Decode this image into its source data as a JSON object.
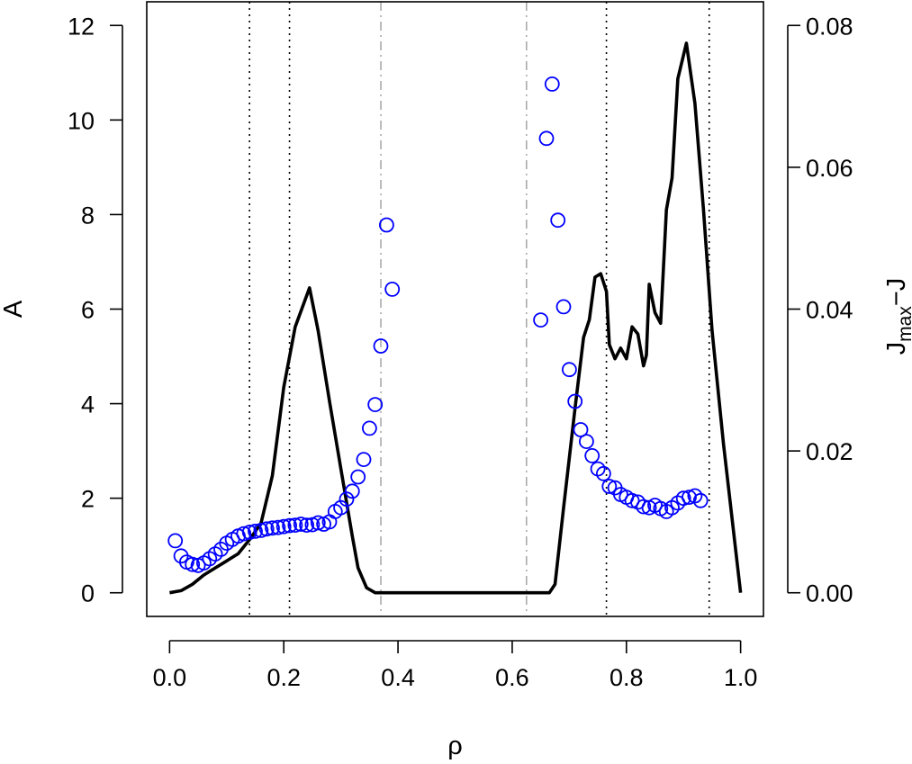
{
  "chart_data": {
    "type": "scatter",
    "x": {
      "label": "ρ",
      "lim": [
        -0.04,
        1.04
      ],
      "ticks": [
        0.0,
        0.2,
        0.4,
        0.6,
        0.8,
        1.0
      ],
      "tick_labels": [
        "0.0",
        "0.2",
        "0.4",
        "0.6",
        "0.8",
        "1.0"
      ]
    },
    "y_left": {
      "label": "A",
      "lim": [
        -0.5,
        12.5
      ],
      "ticks": [
        0,
        2,
        4,
        6,
        8,
        10,
        12
      ],
      "tick_labels": [
        "0",
        "2",
        "4",
        "6",
        "8",
        "10",
        "12"
      ]
    },
    "y_right": {
      "label_main": "J",
      "label_sub": "max",
      "label_rest": "−J",
      "ylim_note": "same pixel span as left axis",
      "ticks": [
        0.0,
        0.02,
        0.04,
        0.06,
        0.08
      ],
      "tick_labels": [
        "0.00",
        "0.02",
        "0.04",
        "0.06",
        "0.08"
      ]
    },
    "vlines_dotted": [
      0.14,
      0.21,
      0.765,
      0.945
    ],
    "vlines_dashdot": [
      0.37,
      0.625
    ],
    "grid": false,
    "series": [
      {
        "kind": "points",
        "axis": "left",
        "color": "#0000ff",
        "marker": "open-circle",
        "points": [
          [
            0.01,
            1.1
          ],
          [
            0.02,
            0.78
          ],
          [
            0.03,
            0.65
          ],
          [
            0.04,
            0.6
          ],
          [
            0.05,
            0.58
          ],
          [
            0.06,
            0.63
          ],
          [
            0.07,
            0.72
          ],
          [
            0.08,
            0.82
          ],
          [
            0.09,
            0.92
          ],
          [
            0.1,
            1.05
          ],
          [
            0.11,
            1.13
          ],
          [
            0.12,
            1.2
          ],
          [
            0.13,
            1.25
          ],
          [
            0.14,
            1.28
          ],
          [
            0.15,
            1.3
          ],
          [
            0.16,
            1.32
          ],
          [
            0.17,
            1.35
          ],
          [
            0.18,
            1.37
          ],
          [
            0.19,
            1.38
          ],
          [
            0.2,
            1.4
          ],
          [
            0.21,
            1.42
          ],
          [
            0.22,
            1.43
          ],
          [
            0.23,
            1.45
          ],
          [
            0.24,
            1.43
          ],
          [
            0.25,
            1.44
          ],
          [
            0.26,
            1.48
          ],
          [
            0.27,
            1.45
          ],
          [
            0.28,
            1.5
          ],
          [
            0.29,
            1.72
          ],
          [
            0.3,
            1.8
          ],
          [
            0.31,
            1.98
          ],
          [
            0.32,
            2.15
          ],
          [
            0.33,
            2.45
          ],
          [
            0.34,
            2.82
          ],
          [
            0.35,
            3.48
          ],
          [
            0.36,
            3.98
          ],
          [
            0.37,
            5.22
          ],
          [
            0.38,
            7.78
          ],
          [
            0.39,
            6.42
          ],
          [
            0.65,
            5.77
          ],
          [
            0.66,
            9.61
          ],
          [
            0.67,
            10.76
          ],
          [
            0.68,
            7.88
          ],
          [
            0.69,
            6.05
          ],
          [
            0.7,
            4.72
          ],
          [
            0.71,
            4.05
          ],
          [
            0.72,
            3.45
          ],
          [
            0.73,
            3.2
          ],
          [
            0.74,
            2.9
          ],
          [
            0.75,
            2.62
          ],
          [
            0.76,
            2.52
          ],
          [
            0.77,
            2.25
          ],
          [
            0.78,
            2.22
          ],
          [
            0.79,
            2.08
          ],
          [
            0.8,
            2.02
          ],
          [
            0.81,
            1.95
          ],
          [
            0.82,
            1.92
          ],
          [
            0.83,
            1.82
          ],
          [
            0.84,
            1.8
          ],
          [
            0.85,
            1.85
          ],
          [
            0.86,
            1.78
          ],
          [
            0.87,
            1.72
          ],
          [
            0.88,
            1.8
          ],
          [
            0.89,
            1.9
          ],
          [
            0.9,
            2.0
          ],
          [
            0.91,
            2.02
          ],
          [
            0.92,
            2.05
          ],
          [
            0.93,
            1.95
          ]
        ]
      },
      {
        "kind": "line",
        "axis": "right",
        "color": "#000000",
        "points": [
          [
            0.0,
            0.0
          ],
          [
            0.02,
            0.0003
          ],
          [
            0.04,
            0.0012
          ],
          [
            0.06,
            0.0025
          ],
          [
            0.08,
            0.0035
          ],
          [
            0.1,
            0.0045
          ],
          [
            0.12,
            0.0055
          ],
          [
            0.14,
            0.0075
          ],
          [
            0.16,
            0.0098
          ],
          [
            0.18,
            0.0165
          ],
          [
            0.2,
            0.029
          ],
          [
            0.22,
            0.0375
          ],
          [
            0.245,
            0.043
          ],
          [
            0.26,
            0.037
          ],
          [
            0.28,
            0.027
          ],
          [
            0.3,
            0.0175
          ],
          [
            0.32,
            0.008
          ],
          [
            0.33,
            0.0035
          ],
          [
            0.345,
            0.0007
          ],
          [
            0.36,
            0.0
          ],
          [
            0.665,
            0.0
          ],
          [
            0.675,
            0.0012
          ],
          [
            0.69,
            0.012
          ],
          [
            0.71,
            0.026
          ],
          [
            0.725,
            0.036
          ],
          [
            0.735,
            0.0385
          ],
          [
            0.745,
            0.0445
          ],
          [
            0.755,
            0.045
          ],
          [
            0.765,
            0.0425
          ],
          [
            0.77,
            0.035
          ],
          [
            0.78,
            0.033
          ],
          [
            0.79,
            0.0345
          ],
          [
            0.8,
            0.033
          ],
          [
            0.81,
            0.0375
          ],
          [
            0.82,
            0.0365
          ],
          [
            0.83,
            0.032
          ],
          [
            0.835,
            0.0335
          ],
          [
            0.84,
            0.0435
          ],
          [
            0.85,
            0.0395
          ],
          [
            0.86,
            0.038
          ],
          [
            0.87,
            0.054
          ],
          [
            0.88,
            0.0585
          ],
          [
            0.89,
            0.0725
          ],
          [
            0.905,
            0.0775
          ],
          [
            0.92,
            0.069
          ],
          [
            0.935,
            0.054
          ],
          [
            0.95,
            0.037
          ],
          [
            0.97,
            0.021
          ],
          [
            1.0,
            0.0
          ]
        ]
      }
    ]
  }
}
